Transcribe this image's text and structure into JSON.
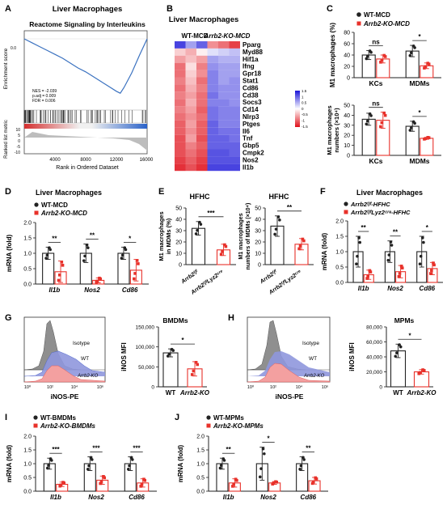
{
  "colors": {
    "black": "#222222",
    "red": "#e8312a",
    "blue": "#3a57c9",
    "hm_red": "#e0101a",
    "hm_blue": "#1a14d8",
    "iso": "#8f8f8f",
    "wt_fill": "#8f97dd",
    "ko_fill": "#f3a0a0"
  },
  "panels": {
    "A": {
      "letter": "A",
      "title": "Liver Macrophages",
      "subtitle": "Reactome Signaling by Interleukins",
      "ylabel_top": "Enrichment score",
      "ylabel_bottom": "Ranked list metric",
      "xlabel": "Rank in Ordered Dataset",
      "stats": [
        "NES = -2.039",
        "p.adj = 0.009",
        "FDR = 0.006"
      ],
      "es_ticks": [
        "0.0",
        "-0.2",
        "-0.4",
        "-0.6"
      ],
      "rank_ticks": [
        "10",
        "5",
        "0",
        "-5",
        "-10"
      ],
      "x_ticks": [
        "4000",
        "8000",
        "12000",
        "16000"
      ]
    },
    "B": {
      "letter": "B",
      "title": "Liver Macrophages",
      "group1": "WT-MCD",
      "group2": "Arrb2-KO-MCD",
      "genes": [
        "Pparg",
        "Myd88",
        "Hif1a",
        "Ifng",
        "Gpr18",
        "Stat1",
        "Cd86",
        "Cd38",
        "Socs3",
        "Cd14",
        "Nlrp3",
        "Ptges",
        "Il6",
        "Tnf",
        "Gbp5",
        "Cmpk2",
        "Nos2",
        "Il1b"
      ],
      "legend_ticks": [
        "1.5",
        "1",
        "0.5",
        "0",
        "-0.5",
        "-1",
        "-1.5"
      ]
    },
    "C": {
      "letter": "C",
      "legend": [
        "WT-MCD",
        "Arrb2-KO-MCD"
      ],
      "top": {
        "ylabel": "M1 macrophages (%)",
        "yticks": [
          "0",
          "20",
          "40",
          "60",
          "80"
        ],
        "groups": [
          "KCs",
          "MDMs"
        ],
        "sig": [
          "ns",
          "*"
        ]
      },
      "bottom": {
        "ylabel": "M1 macrophages numbers (×10⁴)",
        "yticks": [
          "0",
          "10",
          "20",
          "30",
          "40",
          "50"
        ],
        "groups": [
          "KCs",
          "MDMs"
        ],
        "sig": [
          "ns",
          "*"
        ]
      }
    },
    "D": {
      "letter": "D",
      "title": "Liver Macrophages",
      "legend": [
        "WT-MCD",
        "Arrb2-KO-MCD"
      ],
      "ylabel": "mRNA (fold)",
      "yticks": [
        "0.0",
        "0.5",
        "1.0",
        "1.5",
        "2.0"
      ],
      "genes": [
        "Il1b",
        "Nos2",
        "Cd86"
      ],
      "sig": [
        "**",
        "**",
        "*"
      ]
    },
    "E": {
      "letter": "E",
      "left": {
        "title": "HFHC",
        "ylabel": "M1 macrophages in MDMs (%)",
        "yticks": [
          "0",
          "10",
          "20",
          "30",
          "40",
          "50"
        ],
        "groups": [
          "Arrb2ᶠ/ᶠ",
          "Arrb2ᶠ/ᶠLyz2ᶜʳᵉ"
        ],
        "sig": "***"
      },
      "right": {
        "title": "HFHC",
        "ylabel": "M1 macrophages numbers of MDMs (×10⁴)",
        "yticks": [
          "0",
          "10",
          "20",
          "30",
          "40",
          "50"
        ],
        "groups": [
          "Arrb2ᶠ/ᶠ",
          "Arrb2ᶠ/ᶠLyz2ᶜʳᵉ"
        ],
        "sig": "**"
      }
    },
    "F": {
      "letter": "F",
      "title": "Liver Macrophages",
      "legend": [
        "Arrb2ᶠ/ᶠ-HFHC",
        "Arrb2ᶠ/ᶠLyz2ᶜʳᵉ-HFHC"
      ],
      "ylabel": "mRNA (fold)",
      "yticks": [
        "0.0",
        "0.5",
        "1.0",
        "1.5",
        "2.0"
      ],
      "genes": [
        "Il1b",
        "Nos2",
        "Cd86"
      ],
      "sig": [
        "**",
        "**",
        "*"
      ]
    },
    "G": {
      "letter": "G",
      "flow_labels": [
        "Isotype",
        "WT",
        "Arrb2-KO"
      ],
      "flow_xlabel": "iNOS-PE",
      "flow_xticks": [
        "10⁰",
        "10²",
        "10⁴",
        "10⁶"
      ],
      "bar_title": "BMDMs",
      "bar_ylabel": "iNOS MFI",
      "bar_yticks": [
        "0",
        "50,000",
        "100,000",
        "150,000"
      ],
      "groups": [
        "WT",
        "Arrb2-KO"
      ],
      "sig": "*"
    },
    "H": {
      "letter": "H",
      "flow_labels": [
        "Isotype",
        "WT",
        "Arrb2-KO"
      ],
      "flow_xlabel": "iNOS-PE",
      "flow_xticks": [
        "10⁰",
        "10²",
        "10⁴",
        "10⁶"
      ],
      "bar_title": "MPMs",
      "bar_ylabel": "iNOS MFI",
      "bar_yticks": [
        "0",
        "20,000",
        "40,000",
        "60,000",
        "80,000"
      ],
      "groups": [
        "WT",
        "Arrb2-KO"
      ],
      "sig": "*"
    },
    "I": {
      "letter": "I",
      "legend": [
        "WT-BMDMs",
        "Arrb2-KO-BMDMs"
      ],
      "ylabel": "mRNA (fold)",
      "yticks": [
        "0.0",
        "0.5",
        "1.0",
        "1.5",
        "2.0"
      ],
      "genes": [
        "Il1b",
        "Nos2",
        "Cd86"
      ],
      "sig": [
        "***",
        "***",
        "***"
      ]
    },
    "J": {
      "letter": "J",
      "legend": [
        "WT-MPMs",
        "Arrb2-KO-MPMs"
      ],
      "ylabel": "mRNA (fold)",
      "yticks": [
        "0.0",
        "0.5",
        "1.0",
        "1.5",
        "2.0"
      ],
      "genes": [
        "Il1b",
        "Nos2",
        "Cd86"
      ],
      "sig": [
        "**",
        "*",
        "**"
      ]
    }
  },
  "chart_data": [
    {
      "id": "A",
      "type": "line",
      "title": "Reactome Signaling by Interleukins",
      "xlabel": "Rank in Ordered Dataset",
      "ylabel": "Enrichment score",
      "xlim": [
        0,
        16000
      ],
      "ylim": [
        -0.65,
        0.05
      ],
      "x": [
        0,
        1000,
        2000,
        3000,
        4000,
        5000,
        6000,
        7000,
        8000,
        9000,
        10000,
        11000,
        12000,
        12500,
        13000,
        14000,
        15000,
        16000
      ],
      "y": [
        0,
        -0.04,
        -0.08,
        -0.12,
        -0.16,
        -0.2,
        -0.25,
        -0.3,
        -0.34,
        -0.39,
        -0.44,
        -0.49,
        -0.54,
        -0.56,
        -0.5,
        -0.35,
        -0.17,
        0
      ]
    },
    {
      "id": "B",
      "type": "heatmap",
      "title": "Liver Macrophages",
      "columns": [
        "WT-MCD",
        "WT-MCD",
        "WT-MCD",
        "Arrb2-KO-MCD",
        "Arrb2-KO-MCD",
        "Arrb2-KO-MCD"
      ],
      "rows": [
        "Pparg",
        "Myd88",
        "Hif1a",
        "Ifng",
        "Gpr18",
        "Stat1",
        "Cd86",
        "Cd38",
        "Socs3",
        "Cd14",
        "Nlrp3",
        "Ptges",
        "Il6",
        "Tnf",
        "Gbp5",
        "Cmpk2",
        "Nos2",
        "Il1b"
      ],
      "values": [
        [
          -1.2,
          -0.6,
          -1.0,
          0.7,
          0.9,
          1.2
        ],
        [
          0.3,
          0.5,
          0.1,
          -0.2,
          -0.3,
          -0.4
        ],
        [
          0.6,
          0.4,
          0.6,
          -0.6,
          -0.5,
          -0.5
        ],
        [
          0.9,
          0.2,
          0.8,
          -0.7,
          -0.6,
          -0.6
        ],
        [
          0.9,
          0.3,
          0.7,
          -0.8,
          -0.6,
          -0.6
        ],
        [
          0.8,
          0.4,
          0.9,
          -0.8,
          -0.6,
          -0.7
        ],
        [
          0.9,
          0.5,
          0.8,
          -0.8,
          -0.7,
          -0.7
        ],
        [
          0.8,
          0.6,
          0.9,
          -0.9,
          -0.7,
          -0.7
        ],
        [
          0.9,
          0.5,
          0.9,
          -0.8,
          -0.8,
          -0.7
        ],
        [
          0.8,
          0.6,
          1.0,
          -0.9,
          -0.8,
          -0.8
        ],
        [
          0.9,
          0.7,
          0.9,
          -0.9,
          -0.8,
          -0.8
        ],
        [
          1.0,
          0.6,
          1.0,
          -1.0,
          -0.8,
          -0.8
        ],
        [
          1.0,
          0.7,
          1.0,
          -1.0,
          -0.9,
          -0.9
        ],
        [
          1.1,
          0.6,
          1.1,
          -1.0,
          -1.0,
          -0.9
        ],
        [
          1.1,
          0.8,
          1.0,
          -1.0,
          -1.0,
          -1.0
        ],
        [
          1.1,
          0.9,
          1.1,
          -1.1,
          -1.1,
          -1.0
        ],
        [
          1.2,
          1.0,
          1.2,
          -1.1,
          -1.1,
          -1.1
        ],
        [
          1.3,
          1.1,
          1.3,
          -1.2,
          -1.2,
          -1.2
        ]
      ],
      "scale": [
        -1.5,
        1.5
      ]
    },
    {
      "id": "C-top",
      "type": "bar",
      "categories": [
        "KCs",
        "MDMs"
      ],
      "ylabel": "M1 macrophages (%)",
      "ylim": [
        0,
        80
      ],
      "series": [
        {
          "name": "WT-MCD",
          "values": [
            40,
            47
          ],
          "err": [
            8,
            10
          ]
        },
        {
          "name": "Arrb2-KO-MCD",
          "values": [
            33,
            21
          ],
          "err": [
            7,
            5
          ]
        }
      ]
    },
    {
      "id": "C-bottom",
      "type": "bar",
      "categories": [
        "KCs",
        "MDMs"
      ],
      "ylabel": "M1 macrophages numbers (×10⁴)",
      "ylim": [
        0,
        50
      ],
      "series": [
        {
          "name": "WT-MCD",
          "values": [
            36,
            29
          ],
          "err": [
            6,
            5
          ]
        },
        {
          "name": "Arrb2-KO-MCD",
          "values": [
            35,
            17
          ],
          "err": [
            8,
            1
          ]
        }
      ]
    },
    {
      "id": "D",
      "type": "bar",
      "categories": [
        "Il1b",
        "Nos2",
        "Cd86"
      ],
      "ylabel": "mRNA (fold)",
      "ylim": [
        0,
        2
      ],
      "series": [
        {
          "name": "WT-MCD",
          "values": [
            1.0,
            1.0,
            1.0
          ],
          "err": [
            0.2,
            0.3,
            0.2
          ]
        },
        {
          "name": "Arrb2-KO-MCD",
          "values": [
            0.4,
            0.12,
            0.45
          ],
          "err": [
            0.35,
            0.08,
            0.35
          ]
        }
      ]
    },
    {
      "id": "E-left",
      "type": "bar",
      "categories": [
        "Arrb2ᶠ/ᶠ",
        "Arrb2ᶠ/ᶠLyz2ᶜʳᵉ"
      ],
      "ylabel": "M1 macrophages in MDMs (%)",
      "ylim": [
        0,
        50
      ],
      "series": [
        {
          "name": "",
          "values": [
            32,
            13
          ],
          "err": [
            6,
            5
          ]
        }
      ]
    },
    {
      "id": "E-right",
      "type": "bar",
      "categories": [
        "Arrb2ᶠ/ᶠ",
        "Arrb2ᶠ/ᶠLyz2ᶜʳᵉ"
      ],
      "ylabel": "M1 macrophages numbers of MDMs (×10⁴)",
      "ylim": [
        0,
        50
      ],
      "series": [
        {
          "name": "",
          "values": [
            34,
            18
          ],
          "err": [
            9,
            5
          ]
        }
      ]
    },
    {
      "id": "F",
      "type": "bar",
      "categories": [
        "Il1b",
        "Nos2",
        "Cd86"
      ],
      "ylabel": "mRNA (fold)",
      "ylim": [
        0,
        2
      ],
      "series": [
        {
          "name": "Arrb2ᶠ/ᶠ-HFHC",
          "values": [
            1.0,
            1.0,
            1.0
          ],
          "err": [
            0.5,
            0.35,
            0.5
          ]
        },
        {
          "name": "Arrb2ᶠ/ᶠLyz2ᶜʳᵉ-HFHC",
          "values": [
            0.25,
            0.35,
            0.45
          ],
          "err": [
            0.15,
            0.2,
            0.2
          ]
        }
      ]
    },
    {
      "id": "G",
      "type": "bar",
      "categories": [
        "WT",
        "Arrb2-KO"
      ],
      "ylabel": "iNOS MFI",
      "ylim": [
        0,
        150000
      ],
      "series": [
        {
          "name": "",
          "values": [
            85000,
            45000
          ],
          "err": [
            10000,
            18000
          ]
        }
      ]
    },
    {
      "id": "H",
      "type": "bar",
      "categories": [
        "WT",
        "Arrb2-KO"
      ],
      "ylabel": "iNOS MFI",
      "ylim": [
        0,
        80000
      ],
      "series": [
        {
          "name": "",
          "values": [
            48000,
            20000
          ],
          "err": [
            9000,
            3000
          ]
        }
      ]
    },
    {
      "id": "I",
      "type": "bar",
      "categories": [
        "Il1b",
        "Nos2",
        "Cd86"
      ],
      "ylabel": "mRNA (fold)",
      "ylim": [
        0,
        2
      ],
      "series": [
        {
          "name": "WT-BMDMs",
          "values": [
            1.0,
            1.0,
            1.0
          ],
          "err": [
            0.2,
            0.25,
            0.25
          ]
        },
        {
          "name": "Arrb2-KO-BMDMs",
          "values": [
            0.25,
            0.4,
            0.3
          ],
          "err": [
            0.08,
            0.15,
            0.15
          ]
        }
      ]
    },
    {
      "id": "J",
      "type": "bar",
      "categories": [
        "Il1b",
        "Nos2",
        "Cd86"
      ],
      "ylabel": "mRNA (fold)",
      "ylim": [
        0,
        2
      ],
      "series": [
        {
          "name": "WT-MPMs",
          "values": [
            1.0,
            1.0,
            1.0
          ],
          "err": [
            0.2,
            0.6,
            0.25
          ]
        },
        {
          "name": "Arrb2-KO-MPMs",
          "values": [
            0.3,
            0.3,
            0.38
          ],
          "err": [
            0.15,
            0.05,
            0.12
          ]
        }
      ]
    }
  ]
}
